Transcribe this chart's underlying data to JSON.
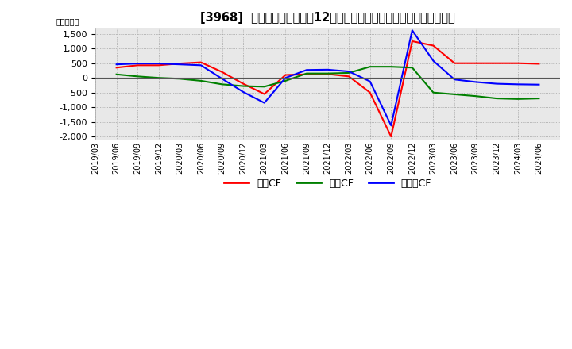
{
  "title": "[3968]  キャッシュフローの12か月移動合計の対前年同期増減額の推移",
  "ylabel": "（百万円）",
  "ylim": [
    -2100,
    1700
  ],
  "yticks": [
    -2000,
    -1500,
    -1000,
    -500,
    0,
    500,
    1000,
    1500
  ],
  "legend_labels": [
    "営業CF",
    "投資CF",
    "フリーCF"
  ],
  "line_colors": [
    "#ff0000",
    "#008000",
    "#0000ff"
  ],
  "bg_color": "#ffffff",
  "plot_bg_color": "#e8e8e8",
  "dates": [
    "2019/03",
    "2019/06",
    "2019/09",
    "2019/12",
    "2020/03",
    "2020/06",
    "2020/09",
    "2020/12",
    "2021/03",
    "2021/06",
    "2021/09",
    "2021/12",
    "2022/03",
    "2022/06",
    "2022/09",
    "2022/12",
    "2023/03",
    "2023/06",
    "2023/09",
    "2023/12",
    "2024/03",
    "2024/06"
  ],
  "operating_cf": [
    null,
    350,
    430,
    430,
    490,
    530,
    200,
    -200,
    -550,
    100,
    120,
    130,
    50,
    -500,
    -2000,
    1250,
    1100,
    500,
    500,
    500,
    500,
    480
  ],
  "investing_cf": [
    null,
    120,
    50,
    0,
    -30,
    -100,
    -220,
    -280,
    -300,
    -100,
    150,
    150,
    170,
    380,
    380,
    350,
    -500,
    -560,
    -620,
    -700,
    -720,
    -700
  ],
  "free_cf": [
    null,
    460,
    490,
    490,
    460,
    430,
    -30,
    -480,
    -850,
    0,
    270,
    280,
    220,
    -120,
    -1620,
    1620,
    580,
    -55,
    -140,
    -200,
    -220,
    -230
  ]
}
